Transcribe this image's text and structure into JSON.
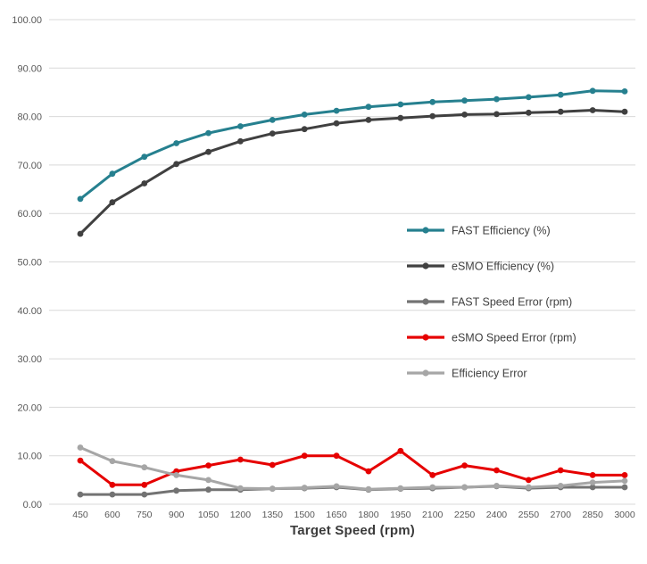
{
  "chart_data": {
    "type": "line",
    "title": "",
    "xlabel": "Target Speed (rpm)",
    "ylabel": "",
    "grid": "horizontal",
    "legend_position": "middle-right",
    "ylim": [
      0,
      100
    ],
    "ytick_values": [
      0,
      10,
      20,
      30,
      40,
      50,
      60,
      70,
      80,
      90,
      100
    ],
    "ytick_labels": [
      "0.00",
      "10.00",
      "20.00",
      "30.00",
      "40.00",
      "50.00",
      "60.00",
      "70.00",
      "80.00",
      "90.00",
      "100.00"
    ],
    "x": [
      450,
      600,
      750,
      900,
      1050,
      1200,
      1350,
      1500,
      1650,
      1800,
      1950,
      2100,
      2250,
      2400,
      2550,
      2700,
      2850,
      3000
    ],
    "series": [
      {
        "name": "FAST Efficiency (%)",
        "color": "#26808F",
        "values": [
          63.0,
          68.2,
          71.7,
          74.5,
          76.6,
          78.0,
          79.3,
          80.4,
          81.2,
          82.0,
          82.5,
          83.0,
          83.3,
          83.6,
          84.0,
          84.5,
          85.3,
          85.2
        ]
      },
      {
        "name": "eSMO Efficiency (%)",
        "color": "#404040",
        "values": [
          55.8,
          62.3,
          66.2,
          70.2,
          72.7,
          74.9,
          76.5,
          77.4,
          78.6,
          79.3,
          79.7,
          80.1,
          80.4,
          80.5,
          80.8,
          81.0,
          81.3,
          81.0
        ]
      },
      {
        "name": "FAST Speed Error (rpm)",
        "color": "#737373",
        "values": [
          2.0,
          2.0,
          2.0,
          2.8,
          3.0,
          3.0,
          3.2,
          3.3,
          3.5,
          3.0,
          3.2,
          3.3,
          3.5,
          3.7,
          3.3,
          3.5,
          3.5,
          3.5
        ]
      },
      {
        "name": "eSMO Speed Error (rpm)",
        "color": "#E60000",
        "values": [
          9.0,
          4.0,
          4.0,
          6.8,
          8.0,
          9.2,
          8.1,
          10.0,
          10.0,
          6.8,
          11.0,
          6.0,
          8.0,
          7.0,
          5.0,
          7.0,
          6.0,
          6.0
        ]
      },
      {
        "name": "Efficiency Error",
        "color": "#A6A6A6",
        "values": [
          11.7,
          8.9,
          7.6,
          6.0,
          5.0,
          3.3,
          3.2,
          3.4,
          3.7,
          3.1,
          3.3,
          3.5,
          3.5,
          3.8,
          3.5,
          3.8,
          4.5,
          4.8
        ]
      }
    ],
    "style": {
      "gridline_color": "#D9D9D9",
      "axis_text_color": "#595959",
      "legend_text_color": "#404040"
    }
  }
}
